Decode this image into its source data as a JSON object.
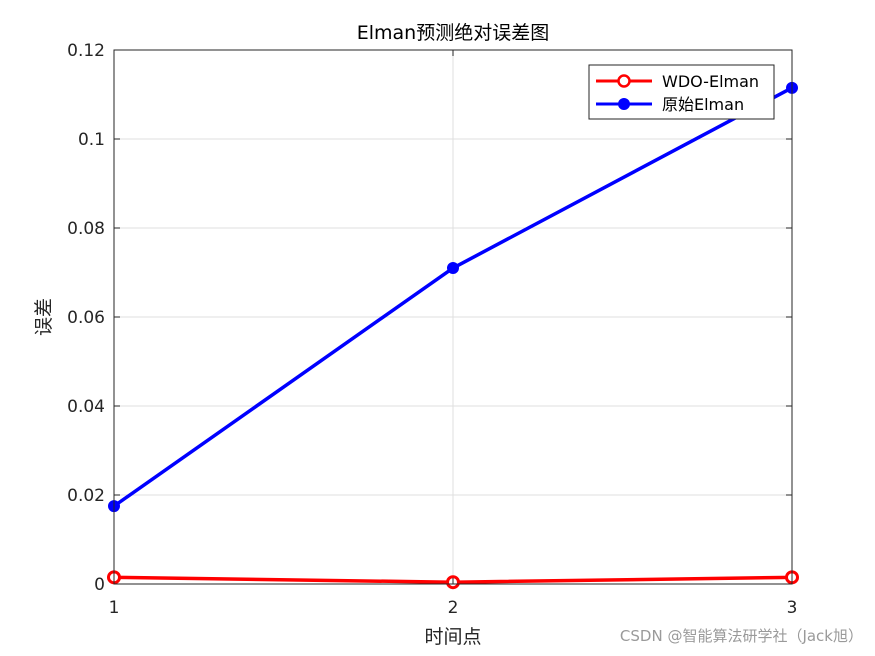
{
  "chart_data": {
    "type": "line",
    "title": "Elman预测绝对误差图",
    "xlabel": "时间点",
    "ylabel": "误差",
    "x": [
      1,
      2,
      3
    ],
    "xlim": [
      1,
      3
    ],
    "ylim": [
      0,
      0.12
    ],
    "xticks": [
      "1",
      "2",
      "3"
    ],
    "yticks": [
      "0",
      "0.02",
      "0.04",
      "0.06",
      "0.08",
      "0.1",
      "0.12"
    ],
    "grid": true,
    "legend_position": "top-right",
    "series": [
      {
        "name": "WDO-Elman",
        "values": [
          0.0015,
          0.0004,
          0.0015
        ],
        "color": "#ff0000",
        "marker": "open-circle"
      },
      {
        "name": "原始Elman",
        "values": [
          0.0175,
          0.071,
          0.1115
        ],
        "color": "#0000ff",
        "marker": "filled-circle"
      }
    ]
  },
  "watermark": "CSDN @智能算法研学社（Jack旭）"
}
